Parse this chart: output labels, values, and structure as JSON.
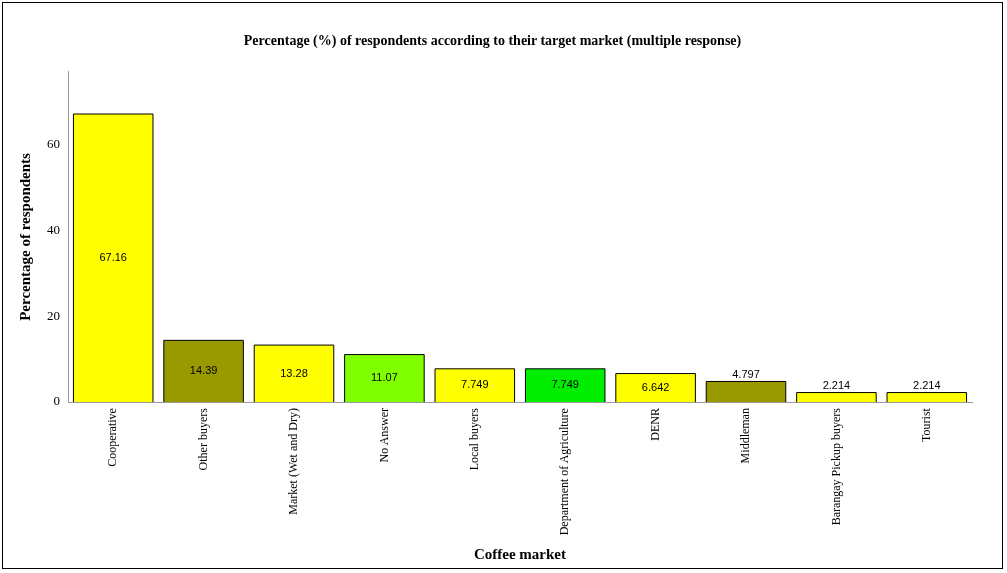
{
  "chart_data": {
    "type": "bar",
    "title": "Percentage (%) of respondents according to their target market (multiple response)",
    "xlabel": "Coffee market",
    "ylabel": "Percentage of respondents",
    "categories": [
      "Cooperative",
      "Other buyers",
      "Market (Wet and Dry)",
      "No Answer",
      "Local buyers",
      "Department of Agriculture",
      "DENR",
      "Middleman",
      "Barangay Pickup buyers",
      "Tourist"
    ],
    "values": [
      67.16,
      14.39,
      13.28,
      11.07,
      7.749,
      7.749,
      6.642,
      4.797,
      2.214,
      2.214
    ],
    "colors": [
      "#ffff00",
      "#999900",
      "#ffff00",
      "#80ff00",
      "#ffff00",
      "#00ee00",
      "#ffff00",
      "#999900",
      "#ffff00",
      "#ffff00"
    ],
    "ylim": [
      0,
      77
    ],
    "yticks": [
      0,
      20,
      40,
      60
    ],
    "grid": false,
    "legend": false,
    "data_labels": true
  }
}
